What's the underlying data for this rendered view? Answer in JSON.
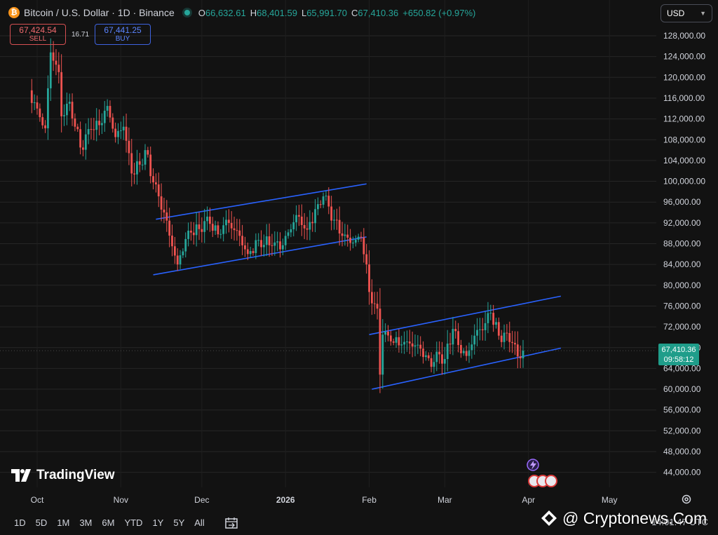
{
  "header": {
    "coin_icon_glyph": "₿",
    "symbol_title": "Bitcoin / U.S. Dollar · 1D · Binance",
    "ohlc": [
      {
        "k": "O",
        "v": "66,632.61"
      },
      {
        "k": "H",
        "v": "68,401.59"
      },
      {
        "k": "L",
        "v": "65,991.70"
      },
      {
        "k": "C",
        "v": "67,410.36"
      },
      {
        "k": "",
        "v": "+650.82 (+0.97%)"
      }
    ]
  },
  "trade": {
    "sell_price": "67,424.54",
    "sell_label": "SELL",
    "spread": "16.71",
    "buy_price": "67,441.25",
    "buy_label": "BUY"
  },
  "currency_selector": {
    "value": "USD"
  },
  "price_tag": {
    "price": "67,410.36",
    "countdown": "09:58:12"
  },
  "logo": {
    "text": "TradingView"
  },
  "bottom_bar": {
    "timeframes": [
      "1D",
      "5D",
      "1M",
      "3M",
      "6M",
      "YTD",
      "1Y",
      "5Y",
      "All"
    ],
    "utc_time": "14:01:47 UTC"
  },
  "watermark": {
    "text": "@ Cryptonews.Com"
  },
  "colors": {
    "up": "#26a69a",
    "down": "#ef5350",
    "channel": "#2962ff",
    "sell": "#f06a6e",
    "buy": "#5b84ff",
    "tag": "#1f9d8a"
  },
  "chart_data": {
    "type": "candlestick",
    "ylim": [
      40000,
      130000
    ],
    "y_ticks": [
      "44,000.00",
      "48,000.00",
      "52,000.00",
      "56,000.00",
      "60,000.00",
      "64,000.00",
      "68,000.00",
      "72,000.00",
      "76,000.00",
      "80,000.00",
      "84,000.00",
      "88,000.00",
      "92,000.00",
      "96,000.00",
      "100,000.00",
      "104,000.00",
      "108,000.00",
      "112,000.00",
      "116,000.00",
      "120,000.00",
      "124,000.00",
      "128,000.00"
    ],
    "x_ticks": [
      {
        "label": "Oct",
        "date": "2025-10-01"
      },
      {
        "label": "Nov",
        "date": "2025-11-01"
      },
      {
        "label": "Dec",
        "date": "2025-12-01"
      },
      {
        "label": "2026",
        "date": "2026-01-01"
      },
      {
        "label": "Feb",
        "date": "2026-02-01"
      },
      {
        "label": "Mar",
        "date": "2026-03-01"
      },
      {
        "label": "Apr",
        "date": "2026-04-01"
      },
      {
        "label": "May",
        "date": "2026-05-01"
      }
    ],
    "close_series": [
      [
        "2025-09-28",
        117500
      ],
      [
        "2025-10-01",
        114000
      ],
      [
        "2025-10-04",
        110200
      ],
      [
        "2025-10-06",
        124800
      ],
      [
        "2025-10-09",
        121000
      ],
      [
        "2025-10-10",
        112500
      ],
      [
        "2025-10-13",
        115300
      ],
      [
        "2025-10-17",
        106500
      ],
      [
        "2025-10-21",
        110000
      ],
      [
        "2025-10-24",
        110800
      ],
      [
        "2025-10-27",
        114500
      ],
      [
        "2025-10-30",
        108500
      ],
      [
        "2025-11-02",
        110500
      ],
      [
        "2025-11-05",
        101500
      ],
      [
        "2025-11-08",
        103200
      ],
      [
        "2025-11-10",
        106000
      ],
      [
        "2025-11-13",
        99800
      ],
      [
        "2025-11-17",
        94000
      ],
      [
        "2025-11-20",
        87500
      ],
      [
        "2025-11-22",
        84000
      ],
      [
        "2025-11-26",
        90500
      ],
      [
        "2025-11-30",
        90800
      ],
      [
        "2025-12-03",
        93200
      ],
      [
        "2025-12-07",
        89800
      ],
      [
        "2025-12-10",
        92600
      ],
      [
        "2025-12-15",
        89500
      ],
      [
        "2025-12-18",
        86000
      ],
      [
        "2025-12-22",
        88700
      ],
      [
        "2025-12-27",
        87600
      ],
      [
        "2025-12-31",
        87700
      ],
      [
        "2026-01-05",
        93500
      ],
      [
        "2026-01-09",
        90700
      ],
      [
        "2026-01-13",
        95600
      ],
      [
        "2026-01-15",
        97100
      ],
      [
        "2026-01-19",
        92600
      ],
      [
        "2026-01-22",
        89500
      ],
      [
        "2026-01-26",
        88200
      ],
      [
        "2026-01-29",
        89200
      ],
      [
        "2026-01-31",
        84000
      ],
      [
        "2026-02-01",
        78700
      ],
      [
        "2026-02-04",
        75500
      ],
      [
        "2026-02-05",
        62800
      ],
      [
        "2026-02-06",
        70500
      ],
      [
        "2026-02-09",
        69200
      ],
      [
        "2026-02-13",
        68600
      ],
      [
        "2026-02-16",
        68800
      ],
      [
        "2026-02-20",
        67800
      ],
      [
        "2026-02-24",
        64300
      ],
      [
        "2026-02-26",
        67200
      ],
      [
        "2026-03-01",
        65800
      ],
      [
        "2026-03-04",
        71600
      ],
      [
        "2026-03-06",
        68500
      ],
      [
        "2026-03-09",
        66400
      ],
      [
        "2026-03-12",
        70300
      ],
      [
        "2026-03-16",
        72700
      ],
      [
        "2026-03-18",
        74700
      ],
      [
        "2026-03-21",
        70300
      ],
      [
        "2026-03-24",
        70800
      ],
      [
        "2026-03-26",
        68900
      ],
      [
        "2026-03-28",
        66300
      ],
      [
        "2026-03-30",
        67410.36
      ]
    ],
    "channel_lines": [
      {
        "from": [
          "2025-11-14",
          92700
        ],
        "to": [
          "2026-01-31",
          99500
        ]
      },
      {
        "from": [
          "2025-11-13",
          82000
        ],
        "to": [
          "2026-01-31",
          89300
        ]
      },
      {
        "from": [
          "2026-02-01",
          70500
        ],
        "to": [
          "2026-04-13",
          77900
        ]
      },
      {
        "from": [
          "2026-02-02",
          60000
        ],
        "to": [
          "2026-04-13",
          67900
        ]
      }
    ],
    "last_price": 67410.36
  }
}
